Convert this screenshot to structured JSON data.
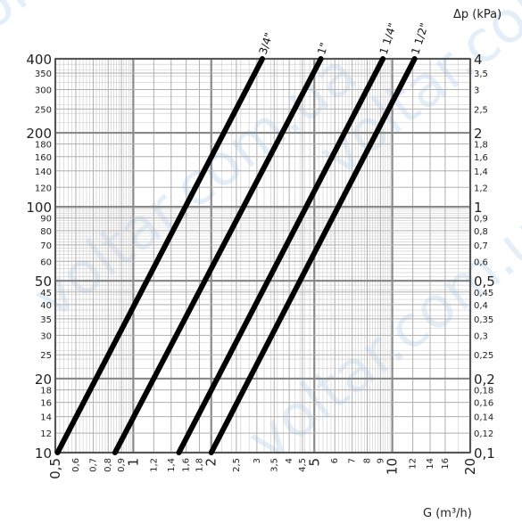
{
  "chart_data": {
    "type": "line",
    "scale": "log-log",
    "grid": true,
    "x_axis": {
      "label": "G (m³/h)",
      "range": [
        0.5,
        20
      ],
      "tick_labels": [
        {
          "v": 0.5,
          "t": "0,5",
          "major": true
        },
        {
          "v": 0.6,
          "t": "0,6",
          "major": false
        },
        {
          "v": 0.7,
          "t": "0,7",
          "major": false
        },
        {
          "v": 0.8,
          "t": "0,8",
          "major": false
        },
        {
          "v": 0.9,
          "t": "0,9",
          "major": false
        },
        {
          "v": 1,
          "t": "1",
          "major": true
        },
        {
          "v": 1.2,
          "t": "1,2",
          "major": false
        },
        {
          "v": 1.4,
          "t": "1,4",
          "major": false
        },
        {
          "v": 1.6,
          "t": "1,6",
          "major": false
        },
        {
          "v": 1.8,
          "t": "1,8",
          "major": false
        },
        {
          "v": 2,
          "t": "2",
          "major": true
        },
        {
          "v": 2.5,
          "t": "2,5",
          "major": false
        },
        {
          "v": 3,
          "t": "3",
          "major": false
        },
        {
          "v": 3.5,
          "t": "3,5",
          "major": false
        },
        {
          "v": 4,
          "t": "4",
          "major": false
        },
        {
          "v": 4.5,
          "t": "4,5",
          "major": false
        },
        {
          "v": 5,
          "t": "5",
          "major": true
        },
        {
          "v": 6,
          "t": "6",
          "major": false
        },
        {
          "v": 7,
          "t": "7",
          "major": false
        },
        {
          "v": 8,
          "t": "8",
          "major": false
        },
        {
          "v": 9,
          "t": "9",
          "major": false
        },
        {
          "v": 10,
          "t": "10",
          "major": true
        },
        {
          "v": 12,
          "t": "12",
          "major": false
        },
        {
          "v": 14,
          "t": "14",
          "major": false
        },
        {
          "v": 16,
          "t": "16",
          "major": false
        },
        {
          "v": 20,
          "t": "20",
          "major": true
        }
      ]
    },
    "y_axis_left": {
      "label": "",
      "range": [
        10,
        400
      ],
      "tick_labels": [
        {
          "v": 10,
          "t": "10",
          "major": true
        },
        {
          "v": 12,
          "t": "12",
          "major": false
        },
        {
          "v": 14,
          "t": "14",
          "major": false
        },
        {
          "v": 16,
          "t": "16",
          "major": false
        },
        {
          "v": 18,
          "t": "18",
          "major": false
        },
        {
          "v": 20,
          "t": "20",
          "major": true
        },
        {
          "v": 25,
          "t": "25",
          "major": false
        },
        {
          "v": 30,
          "t": "30",
          "major": false
        },
        {
          "v": 35,
          "t": "35",
          "major": false
        },
        {
          "v": 40,
          "t": "40",
          "major": false
        },
        {
          "v": 45,
          "t": "45",
          "major": false
        },
        {
          "v": 50,
          "t": "50",
          "major": true
        },
        {
          "v": 60,
          "t": "60",
          "major": false
        },
        {
          "v": 70,
          "t": "70",
          "major": false
        },
        {
          "v": 80,
          "t": "80",
          "major": false
        },
        {
          "v": 90,
          "t": "90",
          "major": false
        },
        {
          "v": 100,
          "t": "100",
          "major": true
        },
        {
          "v": 120,
          "t": "120",
          "major": false
        },
        {
          "v": 140,
          "t": "140",
          "major": false
        },
        {
          "v": 160,
          "t": "160",
          "major": false
        },
        {
          "v": 180,
          "t": "180",
          "major": false
        },
        {
          "v": 200,
          "t": "200",
          "major": true
        },
        {
          "v": 250,
          "t": "250",
          "major": false
        },
        {
          "v": 300,
          "t": "300",
          "major": false
        },
        {
          "v": 350,
          "t": "350",
          "major": false
        },
        {
          "v": 400,
          "t": "400",
          "major": true
        }
      ]
    },
    "y_axis_right": {
      "label": "Δp (kPa)",
      "range": [
        0.1,
        4
      ],
      "tick_labels": [
        {
          "v": 0.1,
          "t": "0,1",
          "major": true
        },
        {
          "v": 0.12,
          "t": "0,12",
          "major": false
        },
        {
          "v": 0.14,
          "t": "0,14",
          "major": false
        },
        {
          "v": 0.16,
          "t": "0,16",
          "major": false
        },
        {
          "v": 0.18,
          "t": "0,18",
          "major": false
        },
        {
          "v": 0.2,
          "t": "0,2",
          "major": true
        },
        {
          "v": 0.25,
          "t": "0,25",
          "major": false
        },
        {
          "v": 0.3,
          "t": "0,3",
          "major": false
        },
        {
          "v": 0.35,
          "t": "0,35",
          "major": false
        },
        {
          "v": 0.4,
          "t": "0,4",
          "major": false
        },
        {
          "v": 0.45,
          "t": "0,45",
          "major": false
        },
        {
          "v": 0.5,
          "t": "0,5",
          "major": true
        },
        {
          "v": 0.6,
          "t": "0,6",
          "major": false
        },
        {
          "v": 0.7,
          "t": "0,7",
          "major": false
        },
        {
          "v": 0.8,
          "t": "0,8",
          "major": false
        },
        {
          "v": 0.9,
          "t": "0,9",
          "major": false
        },
        {
          "v": 1,
          "t": "1",
          "major": true
        },
        {
          "v": 1.2,
          "t": "1,2",
          "major": false
        },
        {
          "v": 1.4,
          "t": "1,4",
          "major": false
        },
        {
          "v": 1.6,
          "t": "1,6",
          "major": false
        },
        {
          "v": 1.8,
          "t": "1,8",
          "major": false
        },
        {
          "v": 2,
          "t": "2",
          "major": true
        },
        {
          "v": 2.5,
          "t": "2,5",
          "major": false
        },
        {
          "v": 3,
          "t": "3",
          "major": false
        },
        {
          "v": 3.5,
          "t": "3,5",
          "major": false
        },
        {
          "v": 4,
          "t": "4",
          "major": true
        }
      ]
    },
    "series": [
      {
        "name": "3/4\"",
        "color": "#000000",
        "points": [
          [
            0.51,
            10
          ],
          [
            3.15,
            400
          ]
        ]
      },
      {
        "name": "1\"",
        "color": "#000000",
        "points": [
          [
            0.85,
            10
          ],
          [
            5.3,
            400
          ]
        ]
      },
      {
        "name": "1 1/4\"",
        "color": "#000000",
        "points": [
          [
            1.5,
            10
          ],
          [
            9.2,
            400
          ]
        ]
      },
      {
        "name": "1 1/2\"",
        "color": "#000000",
        "points": [
          [
            2.0,
            10
          ],
          [
            12.2,
            400
          ]
        ]
      }
    ]
  },
  "watermark": {
    "text": "voltar.com.ua",
    "color": "#cfe1f5"
  }
}
